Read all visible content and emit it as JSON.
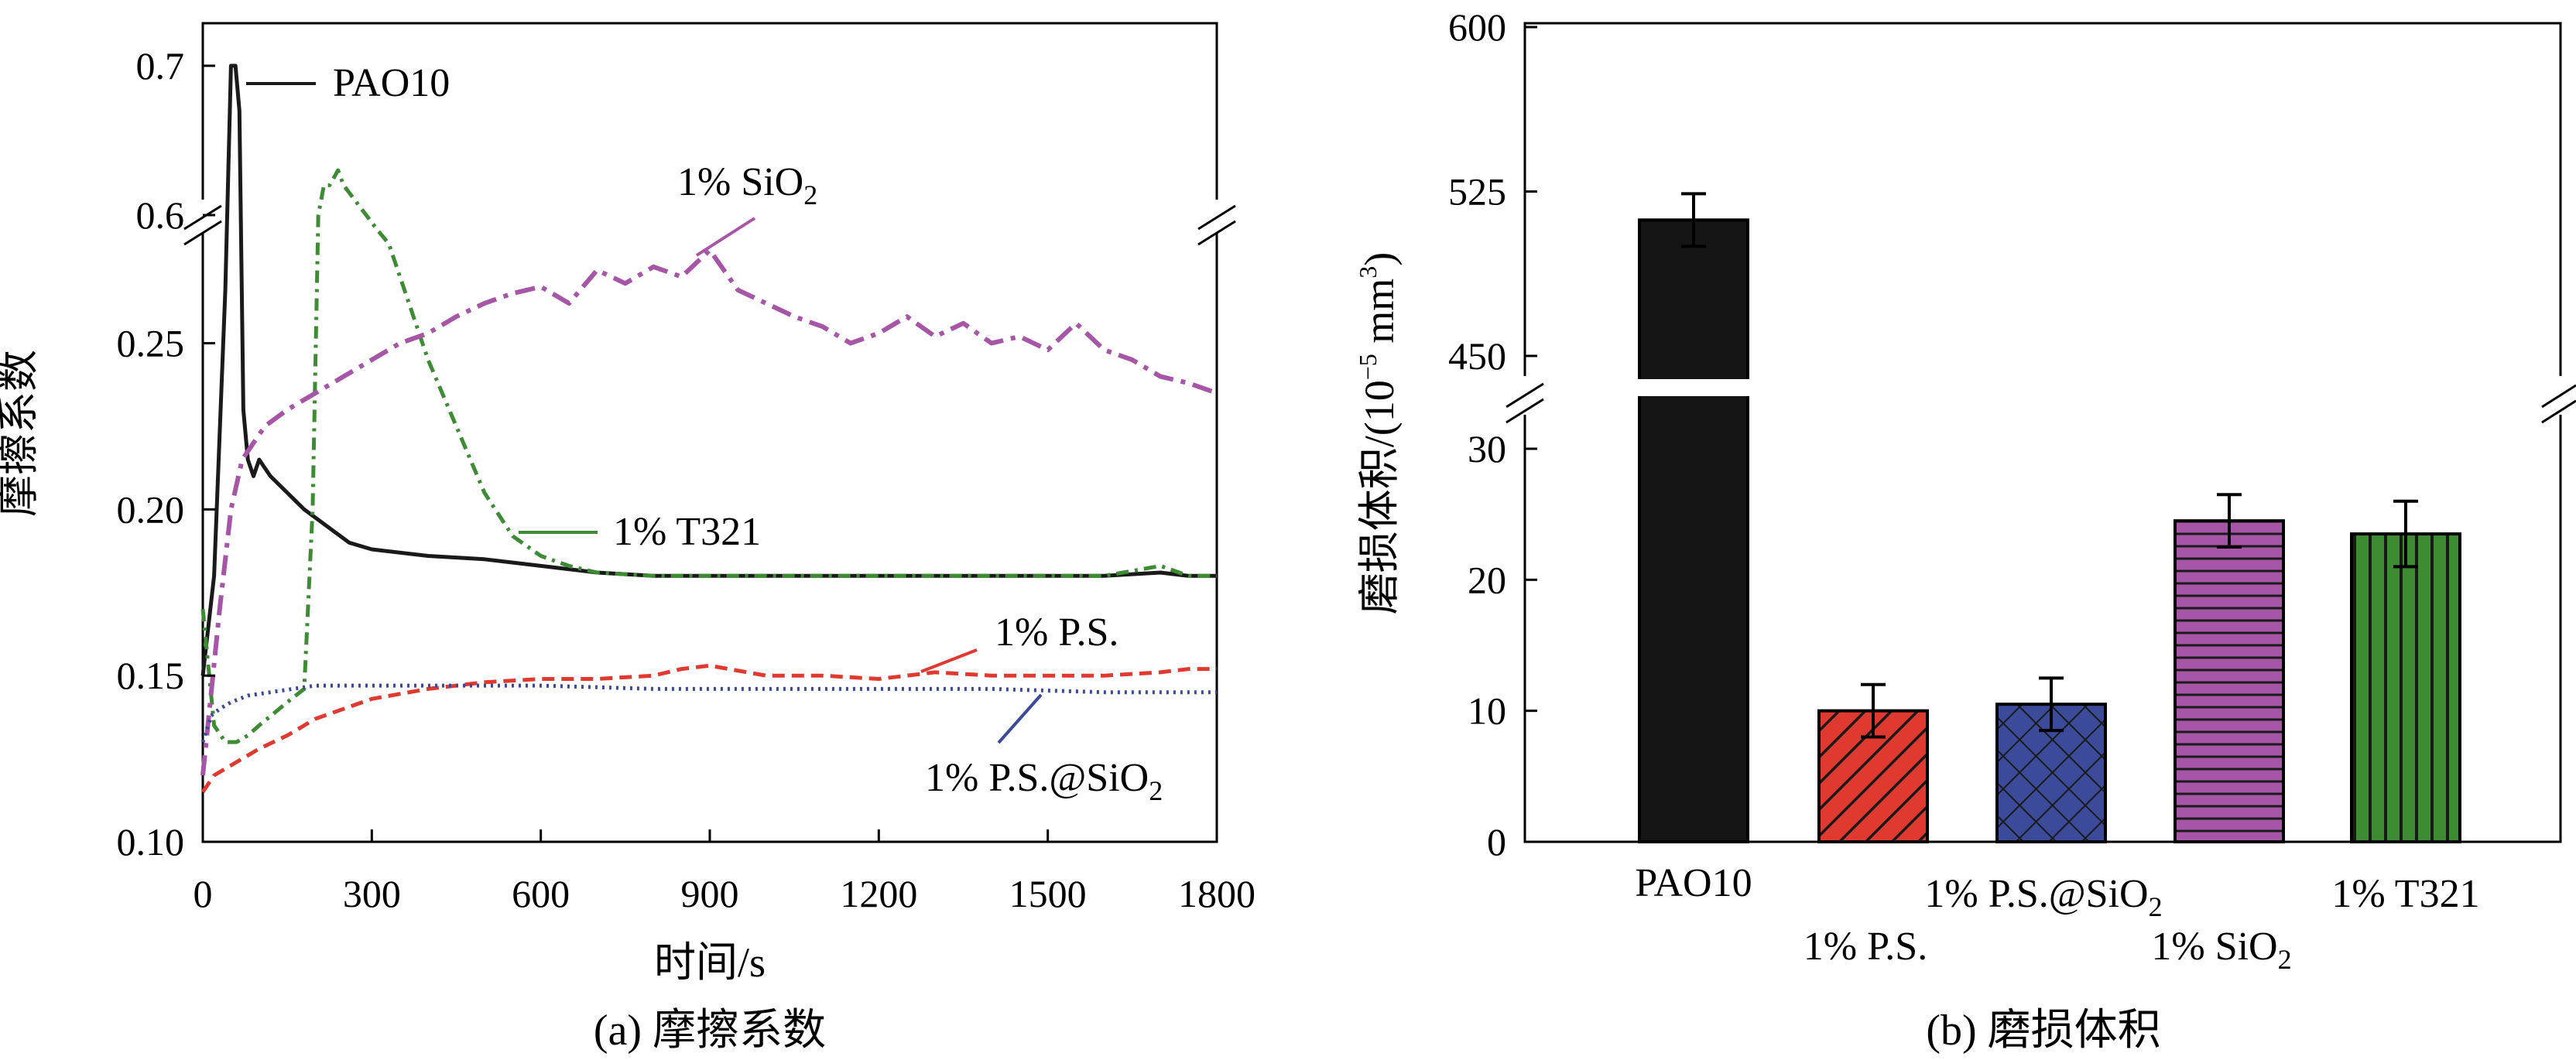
{
  "chart_data": [
    {
      "type": "line",
      "caption": "(a) 摩擦系数",
      "xlabel": "时间/s",
      "ylabel": "摩擦系数",
      "xlim": [
        0,
        1800
      ],
      "x_ticks": [
        "0",
        "300",
        "600",
        "900",
        "1200",
        "1500",
        "1800"
      ],
      "y_ticks_lower": [
        "0.10",
        "0.15",
        "0.20",
        "0.25"
      ],
      "y_ticks_upper": [
        "0.6",
        "0.7"
      ],
      "y_break": {
        "lower_range": [
          0.1,
          0.28
        ],
        "upper_range": [
          0.58,
          0.72
        ]
      },
      "series": [
        {
          "name": "PAO10",
          "label": "PAO10",
          "color": "#1a1a1a",
          "x": [
            0,
            20,
            40,
            50,
            58,
            65,
            72,
            80,
            90,
            100,
            120,
            150,
            180,
            220,
            260,
            300,
            400,
            500,
            600,
            700,
            800,
            900,
            1000,
            1200,
            1400,
            1600,
            1700,
            1750,
            1800
          ],
          "y": [
            0.15,
            0.18,
            0.55,
            0.7,
            0.7,
            0.32,
            0.23,
            0.215,
            0.21,
            0.215,
            0.21,
            0.205,
            0.2,
            0.195,
            0.19,
            0.188,
            0.186,
            0.185,
            0.183,
            0.181,
            0.18,
            0.18,
            0.18,
            0.18,
            0.18,
            0.18,
            0.181,
            0.18,
            0.18
          ]
        },
        {
          "name": "1% T321",
          "label": "1% T321",
          "color": "#3d8b32",
          "x": [
            0,
            20,
            40,
            60,
            80,
            100,
            150,
            180,
            195,
            205,
            215,
            225,
            240,
            250,
            270,
            290,
            310,
            330,
            360,
            400,
            450,
            500,
            550,
            600,
            650,
            700,
            800,
            1000,
            1200,
            1400,
            1600,
            1700,
            1750,
            1800
          ],
          "y": [
            0.17,
            0.135,
            0.13,
            0.13,
            0.132,
            0.135,
            0.142,
            0.146,
            0.2,
            0.6,
            0.62,
            0.62,
            0.63,
            0.62,
            0.61,
            0.6,
            0.59,
            0.28,
            0.265,
            0.245,
            0.225,
            0.205,
            0.192,
            0.186,
            0.183,
            0.181,
            0.18,
            0.18,
            0.18,
            0.18,
            0.18,
            0.183,
            0.18,
            0.18
          ]
        },
        {
          "name": "1% SiO2",
          "label": "1% SiO",
          "color": "#a755a6",
          "x": [
            0,
            15,
            30,
            50,
            70,
            90,
            110,
            150,
            200,
            250,
            300,
            350,
            400,
            450,
            500,
            550,
            600,
            650,
            700,
            750,
            800,
            850,
            900,
            950,
            1000,
            1050,
            1100,
            1150,
            1200,
            1250,
            1300,
            1350,
            1400,
            1450,
            1500,
            1550,
            1600,
            1650,
            1700,
            1750,
            1800
          ],
          "y": [
            0.12,
            0.145,
            0.17,
            0.2,
            0.215,
            0.22,
            0.225,
            0.23,
            0.235,
            0.24,
            0.245,
            0.25,
            0.253,
            0.258,
            0.262,
            0.265,
            0.267,
            0.262,
            0.272,
            0.268,
            0.273,
            0.27,
            0.278,
            0.266,
            0.262,
            0.258,
            0.255,
            0.25,
            0.253,
            0.258,
            0.252,
            0.256,
            0.25,
            0.252,
            0.248,
            0.256,
            0.248,
            0.245,
            0.24,
            0.238,
            0.235
          ]
        },
        {
          "name": "1% P.S.",
          "label": "1% P.S.",
          "color": "#e03a30",
          "x": [
            0,
            20,
            40,
            60,
            100,
            150,
            200,
            250,
            300,
            400,
            500,
            600,
            700,
            800,
            850,
            900,
            1000,
            1100,
            1200,
            1300,
            1400,
            1500,
            1600,
            1700,
            1750,
            1800
          ],
          "y": [
            0.115,
            0.12,
            0.122,
            0.124,
            0.128,
            0.132,
            0.137,
            0.14,
            0.143,
            0.146,
            0.148,
            0.149,
            0.149,
            0.15,
            0.152,
            0.153,
            0.15,
            0.15,
            0.149,
            0.151,
            0.15,
            0.15,
            0.15,
            0.151,
            0.152,
            0.152
          ]
        },
        {
          "name": "1% P.S.@SiO2",
          "label": "1% P.S.@SiO",
          "color": "#3c4a9a",
          "x": [
            0,
            15,
            30,
            50,
            80,
            120,
            160,
            200,
            250,
            300,
            400,
            500,
            600,
            800,
            1000,
            1200,
            1400,
            1600,
            1800
          ],
          "y": [
            0.13,
            0.138,
            0.14,
            0.142,
            0.144,
            0.145,
            0.146,
            0.147,
            0.147,
            0.147,
            0.147,
            0.147,
            0.147,
            0.146,
            0.146,
            0.146,
            0.146,
            0.145,
            0.145
          ]
        }
      ]
    },
    {
      "type": "bar",
      "caption": "(b) 磨损体积",
      "ylabel": "磨损体积/(10",
      "ylabel_exp": "−5",
      "ylabel_unit": " mm",
      "ylabel_unit_exp": "3",
      "ylabel_end": ")",
      "y_ticks_lower": [
        "0",
        "10",
        "20",
        "30"
      ],
      "y_ticks_upper": [
        "450",
        "525",
        "600"
      ],
      "y_break": {
        "lower_range": [
          0,
          35
        ],
        "upper_range": [
          450,
          600
        ]
      },
      "categories": [
        "PAO10",
        "1% P.S.",
        "1% P.S.@SiO",
        "1% SiO",
        "1% T321"
      ],
      "values": [
        512,
        10,
        10.5,
        24.5,
        23.5
      ],
      "errors": [
        12,
        2,
        2,
        2,
        2.5
      ],
      "colors": [
        "#151515",
        "#e03a30",
        "#3c4a9a",
        "#a755a6",
        "#3d8b32"
      ],
      "patterns": [
        "solid",
        "diagonal",
        "crosshatch",
        "horizontal",
        "vertical"
      ]
    }
  ],
  "legend": {
    "sub2": "2"
  }
}
